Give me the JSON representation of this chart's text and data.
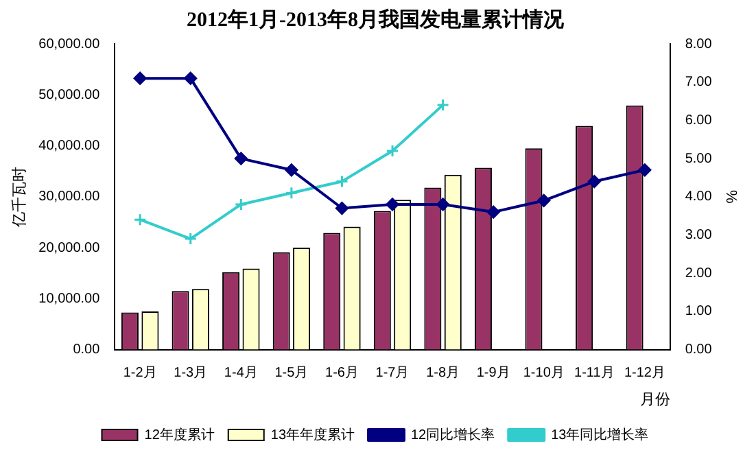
{
  "chart_data": {
    "type": "bar",
    "title": "2012年1月-2013年8月我国发电量累计情况",
    "xlabel": "月份",
    "ylabel": "亿千瓦时",
    "y2label": "%",
    "categories": [
      "1-2月",
      "1-3月",
      "1-4月",
      "1-5月",
      "1-6月",
      "1-7月",
      "1-8月",
      "1-9月",
      "1-10月",
      "1-11月",
      "1-12月"
    ],
    "series": [
      {
        "name": "12年度累计",
        "color": "#993366",
        "values": [
          7300,
          11500,
          15200,
          19100,
          22900,
          27200,
          31800,
          35700,
          39500,
          43900,
          47900
        ]
      },
      {
        "name": "13年年度累计",
        "color": "#ffffcc",
        "values": [
          7500,
          11900,
          15900,
          20000,
          24100,
          29400,
          34300,
          null,
          null,
          null,
          null
        ]
      },
      {
        "name": "12同比增长率",
        "type": "line",
        "axis": "y2",
        "color": "#000080",
        "marker": "diamond",
        "values": [
          7.1,
          7.1,
          5.0,
          4.7,
          3.7,
          3.8,
          3.8,
          3.6,
          3.9,
          4.4,
          4.7
        ]
      },
      {
        "name": "13年同比增长率",
        "type": "line",
        "axis": "y2",
        "color": "#33cccc",
        "marker": "cross",
        "values": [
          3.4,
          2.9,
          3.8,
          4.1,
          4.4,
          5.2,
          6.4,
          null,
          null,
          null,
          null
        ]
      }
    ],
    "ylim": [
      0,
      60000
    ],
    "yticks": [
      {
        "value": 0,
        "label": "0.00"
      },
      {
        "value": 10000,
        "label": "10,000.00"
      },
      {
        "value": 20000,
        "label": "20,000.00"
      },
      {
        "value": 30000,
        "label": "30,000.00"
      },
      {
        "value": 40000,
        "label": "40,000.00"
      },
      {
        "value": 50000,
        "label": "50,000.00"
      },
      {
        "value": 60000,
        "label": "60,000.00"
      }
    ],
    "y2lim": [
      0,
      8
    ],
    "y2ticks": [
      {
        "value": 0,
        "label": "0.00"
      },
      {
        "value": 1,
        "label": "1.00"
      },
      {
        "value": 2,
        "label": "2.00"
      },
      {
        "value": 3,
        "label": "3.00"
      },
      {
        "value": 4,
        "label": "4.00"
      },
      {
        "value": 5,
        "label": "5.00"
      },
      {
        "value": 6,
        "label": "6.00"
      },
      {
        "value": 7,
        "label": "7.00"
      },
      {
        "value": 8,
        "label": "8.00"
      }
    ],
    "grid": false,
    "legend": "bottom"
  }
}
